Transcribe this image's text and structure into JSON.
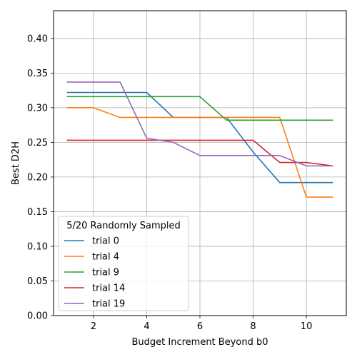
{
  "chart_data": {
    "type": "line",
    "xlabel": "Budget Increment Beyond b0",
    "ylabel": "Best D2H",
    "xlim": [
      0.5,
      11.5
    ],
    "ylim": [
      0.0,
      0.44
    ],
    "xticks": [
      2,
      4,
      6,
      8,
      10
    ],
    "yticks": [
      0.0,
      0.05,
      0.1,
      0.15,
      0.2,
      0.25,
      0.3,
      0.35,
      0.4
    ],
    "ytick_labels": [
      "0.00",
      "0.05",
      "0.10",
      "0.15",
      "0.20",
      "0.25",
      "0.30",
      "0.35",
      "0.40"
    ],
    "grid": true,
    "legend": {
      "title": "5/20 Randomly Sampled",
      "placement": "lower-left"
    },
    "x": [
      1,
      2,
      3,
      4,
      5,
      6,
      7,
      8,
      9,
      10,
      11
    ],
    "series": [
      {
        "name": "trial 0",
        "color": "#1f77b4",
        "values": [
          0.322,
          0.322,
          0.322,
          0.322,
          0.286,
          0.286,
          0.286,
          0.236,
          0.192,
          0.192,
          0.192
        ]
      },
      {
        "name": "trial 4",
        "color": "#ff7f0e",
        "values": [
          0.3,
          0.3,
          0.286,
          0.286,
          0.286,
          0.286,
          0.286,
          0.286,
          0.286,
          0.171,
          0.171
        ]
      },
      {
        "name": "trial 9",
        "color": "#2ca02c",
        "values": [
          0.316,
          0.316,
          0.316,
          0.316,
          0.316,
          0.316,
          0.282,
          0.282,
          0.282,
          0.282,
          0.282
        ]
      },
      {
        "name": "trial 14",
        "color": "#d62728",
        "values": [
          0.253,
          0.253,
          0.253,
          0.253,
          0.253,
          0.253,
          0.253,
          0.253,
          0.221,
          0.221,
          0.216
        ]
      },
      {
        "name": "trial 19",
        "color": "#9467bd",
        "values": [
          0.337,
          0.337,
          0.337,
          0.256,
          0.25,
          0.231,
          0.231,
          0.231,
          0.231,
          0.216,
          0.216
        ]
      }
    ]
  }
}
